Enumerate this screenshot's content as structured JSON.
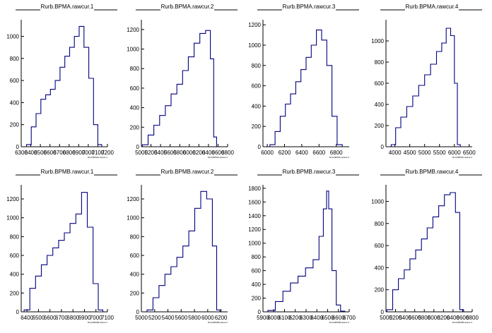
{
  "chart_data": [
    {
      "type": "bar",
      "title": "Rurb.BPMA.rawcur.1",
      "xlabel": "Rurb.BPMA.rawcur.1",
      "xlim": [
        6300,
        7200
      ],
      "ylim": [
        0,
        1150
      ],
      "xticks": [
        6300,
        6400,
        6500,
        6600,
        6700,
        6800,
        6900,
        7000,
        7100,
        7200
      ],
      "xtick_labels": [
        "6300",
        "6400",
        "6500",
        "6600",
        "6700",
        "6800",
        "6900",
        "7000",
        "7100",
        "7200"
      ],
      "yticks": [
        0,
        200,
        400,
        600,
        800,
        1000
      ],
      "x": [
        6380,
        6430,
        6480,
        6530,
        6580,
        6630,
        6680,
        6730,
        6780,
        6830,
        6880,
        6930,
        6980,
        7030,
        7080,
        7120
      ],
      "values": [
        20,
        180,
        300,
        430,
        470,
        520,
        600,
        720,
        820,
        900,
        1000,
        1090,
        900,
        620,
        200,
        20
      ]
    },
    {
      "type": "bar",
      "title": "Rurb.BPMA.rawcur.2",
      "xlabel": "Rurb.BPMA.rawcur.2",
      "xlim": [
        5000,
        6800
      ],
      "ylim": [
        0,
        1300
      ],
      "xticks": [
        5000,
        5200,
        5400,
        5600,
        5800,
        6000,
        6200,
        6400,
        6600,
        6800
      ],
      "xtick_labels": [
        "5000",
        "5200",
        "5400",
        "5600",
        "5800",
        "6000",
        "6200",
        "6400",
        "6600",
        "6800"
      ],
      "yticks": [
        0,
        200,
        400,
        600,
        800,
        1000,
        1200
      ],
      "x": [
        5080,
        5200,
        5320,
        5440,
        5560,
        5680,
        5800,
        5920,
        6040,
        6160,
        6280,
        6400,
        6480,
        6540
      ],
      "values": [
        20,
        120,
        220,
        320,
        420,
        540,
        640,
        780,
        920,
        1060,
        1160,
        1190,
        900,
        100
      ]
    },
    {
      "type": "bar",
      "title": "Rurb.BPMA.rawcur.3",
      "xlabel": "Rurb.BPMA.rawcur.3",
      "xlim": [
        5950,
        6950
      ],
      "ylim": [
        0,
        1250
      ],
      "xticks": [
        6000,
        6200,
        6400,
        6600,
        6800
      ],
      "xtick_labels": [
        "6000",
        "6200",
        "6400",
        "6600",
        "6800"
      ],
      "yticks": [
        0,
        200,
        400,
        600,
        800,
        1000,
        1200
      ],
      "x": [
        6060,
        6120,
        6180,
        6240,
        6300,
        6360,
        6420,
        6480,
        6540,
        6600,
        6660,
        6720,
        6780,
        6840
      ],
      "values": [
        20,
        150,
        300,
        420,
        520,
        640,
        760,
        880,
        1000,
        1150,
        1050,
        800,
        300,
        20
      ]
    },
    {
      "type": "bar",
      "title": "Rurb.BPMA.rawcur.4",
      "xlabel": "Rurb.BPMA.rawcur.4",
      "xlim": [
        3700,
        6600
      ],
      "ylim": [
        0,
        1200
      ],
      "xticks": [
        4000,
        4500,
        5000,
        5500,
        6000,
        6500
      ],
      "xtick_labels": [
        "4000",
        "4500",
        "5000",
        "5500",
        "6000",
        "6500"
      ],
      "yticks": [
        0,
        200,
        400,
        600,
        800,
        1000
      ],
      "x": [
        3950,
        4100,
        4300,
        4500,
        4700,
        4900,
        5100,
        5300,
        5500,
        5650,
        5800,
        5950,
        6050,
        6150
      ],
      "values": [
        20,
        180,
        280,
        380,
        480,
        580,
        680,
        780,
        900,
        980,
        1120,
        1050,
        600,
        20
      ]
    },
    {
      "type": "bar",
      "title": "Rurb.BPMB.rawcur.1",
      "xlabel": "Rurb.BPMB.rawcur.1",
      "xlim": [
        6350,
        7100
      ],
      "ylim": [
        0,
        1350
      ],
      "xticks": [
        6400,
        6500,
        6600,
        6700,
        6800,
        6900,
        7000,
        7100
      ],
      "xtick_labels": [
        "6400",
        "6500",
        "6600",
        "6700",
        "6800",
        "6900",
        "7000",
        "7100"
      ],
      "yticks": [
        0,
        200,
        400,
        600,
        800,
        1000,
        1200
      ],
      "x": [
        6400,
        6450,
        6500,
        6550,
        6600,
        6650,
        6700,
        6750,
        6800,
        6850,
        6900,
        6950,
        7000,
        7040
      ],
      "values": [
        20,
        250,
        380,
        500,
        600,
        680,
        760,
        840,
        940,
        1040,
        1270,
        900,
        300,
        20
      ]
    },
    {
      "type": "bar",
      "title": "Rurb.BPMB.rawcur.2",
      "xlabel": "Rurb.BPMB.rawcur.2",
      "xlim": [
        5000,
        6300
      ],
      "ylim": [
        0,
        1350
      ],
      "xticks": [
        5000,
        5200,
        5400,
        5600,
        5800,
        6000,
        6200
      ],
      "xtick_labels": [
        "5000",
        "5200",
        "5400",
        "5600",
        "5800",
        "6000",
        "6200"
      ],
      "yticks": [
        0,
        200,
        400,
        600,
        800,
        1000,
        1200
      ],
      "x": [
        5130,
        5220,
        5310,
        5400,
        5490,
        5580,
        5670,
        5760,
        5850,
        5940,
        6030,
        6110,
        6160
      ],
      "values": [
        20,
        150,
        280,
        400,
        480,
        580,
        700,
        860,
        1100,
        1280,
        1200,
        700,
        20
      ]
    },
    {
      "type": "bar",
      "title": "Rurb.BPMB.rawcur.3",
      "xlabel": "Rurb.BPMB.rawcur.3",
      "xlim": [
        5900,
        6700
      ],
      "ylim": [
        0,
        1850
      ],
      "xticks": [
        5900,
        6000,
        6100,
        6200,
        6300,
        6400,
        6500,
        6600,
        6700
      ],
      "xtick_labels": [
        "5900",
        "6000",
        "6100",
        "6200",
        "6300",
        "6400",
        "6500",
        "6600",
        "6700"
      ],
      "yticks": [
        0,
        200,
        400,
        600,
        800,
        1000,
        1200,
        1400,
        1600,
        1800
      ],
      "x": [
        5980,
        6050,
        6120,
        6190,
        6260,
        6330,
        6400,
        6440,
        6480,
        6500,
        6520,
        6560,
        6600,
        6640
      ],
      "values": [
        20,
        150,
        300,
        420,
        520,
        640,
        760,
        1100,
        1500,
        1760,
        1500,
        600,
        100,
        10
      ]
    },
    {
      "type": "bar",
      "title": "Rurb.BPMB.rawcur.4",
      "xlabel": "Rurb.BPMB.rawcur.4",
      "xlim": [
        5000,
        6800
      ],
      "ylim": [
        0,
        1150
      ],
      "xticks": [
        5000,
        5200,
        5400,
        5600,
        5800,
        6000,
        6200,
        6400,
        6600,
        6800
      ],
      "xtick_labels": [
        "5000",
        "5200",
        "5400",
        "5600",
        "5800",
        "6000",
        "6200",
        "6400",
        "6600",
        "6800"
      ],
      "yticks": [
        0,
        200,
        400,
        600,
        800,
        1000
      ],
      "x": [
        5080,
        5200,
        5320,
        5440,
        5560,
        5680,
        5800,
        5920,
        6040,
        6160,
        6280,
        6400,
        6500,
        6580
      ],
      "values": [
        20,
        200,
        300,
        380,
        480,
        560,
        660,
        760,
        860,
        960,
        1060,
        1080,
        900,
        20
      ]
    }
  ]
}
